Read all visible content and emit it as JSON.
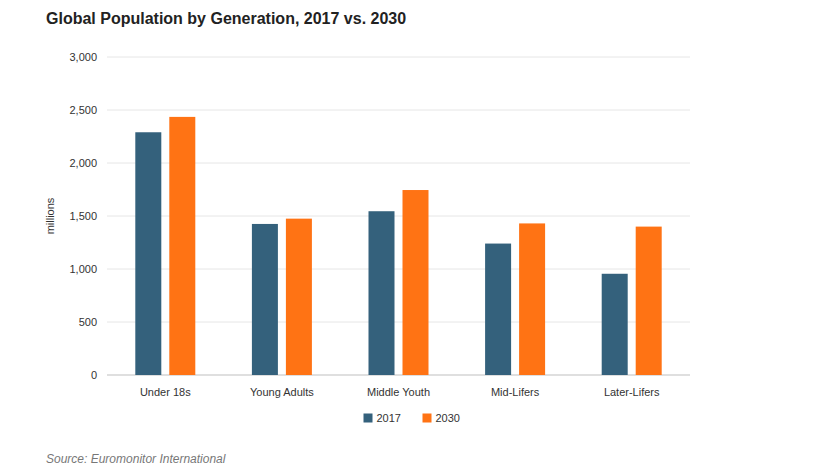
{
  "chart_data": {
    "type": "bar",
    "title": "Global Population by Generation, 2017 vs. 2030",
    "y_label": "millions",
    "source": "Source: Euromonitor International",
    "categories": [
      "Under 18s",
      "Young Adults",
      "Middle Youth",
      "Mid-Lifers",
      "Later-Lifers"
    ],
    "series": [
      {
        "name": "2017",
        "color": "#34617c",
        "values": [
          2290,
          1425,
          1545,
          1240,
          955
        ]
      },
      {
        "name": "2030",
        "color": "#ff7314",
        "values": [
          2435,
          1475,
          1745,
          1430,
          1400
        ]
      }
    ],
    "ylim": [
      0,
      3000
    ],
    "yticks": [
      0,
      500,
      {
        "value": 1000,
        "label": "1,000"
      },
      {
        "value": 1500,
        "label": "1,500"
      },
      {
        "value": 2000,
        "label": "2,000"
      },
      {
        "value": 2500,
        "label": "2,500"
      },
      {
        "value": 3000,
        "label": "3,000"
      }
    ],
    "grid": true,
    "legend": "bottom"
  }
}
